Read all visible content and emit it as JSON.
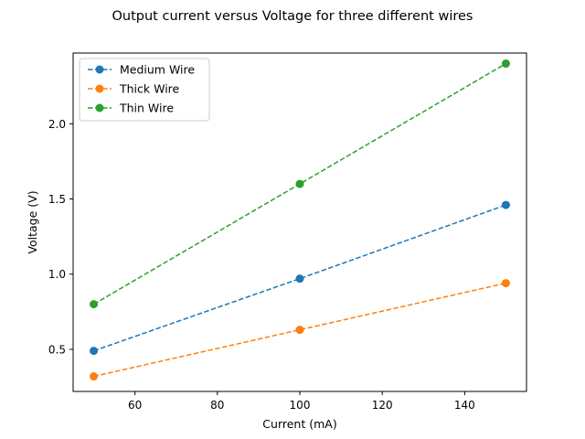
{
  "chart_data": {
    "type": "line",
    "title": "Output current versus Voltage for three different wires",
    "xlabel": "Current (mA)",
    "ylabel": "Voltage (V)",
    "x": [
      50,
      100,
      150
    ],
    "xlim": [
      45,
      155
    ],
    "ylim": [
      0.22,
      2.47
    ],
    "xticks": [
      60,
      80,
      100,
      120,
      140
    ],
    "xtick_labels": [
      "60",
      "80",
      "100",
      "120",
      "140"
    ],
    "yticks": [
      0.5,
      1.0,
      1.5,
      2.0
    ],
    "ytick_labels": [
      "0.5",
      "1.0",
      "1.5",
      "2.0"
    ],
    "grid": false,
    "legend_position": "upper-left",
    "line_style": "dashed",
    "marker": "circle",
    "series": [
      {
        "name": "Medium Wire",
        "color": "#1f77b4",
        "values": [
          0.49,
          0.97,
          1.46
        ]
      },
      {
        "name": "Thick Wire",
        "color": "#ff7f0e",
        "values": [
          0.32,
          0.63,
          0.94
        ]
      },
      {
        "name": "Thin Wire",
        "color": "#2ca02c",
        "values": [
          0.8,
          1.6,
          2.4
        ]
      }
    ]
  }
}
